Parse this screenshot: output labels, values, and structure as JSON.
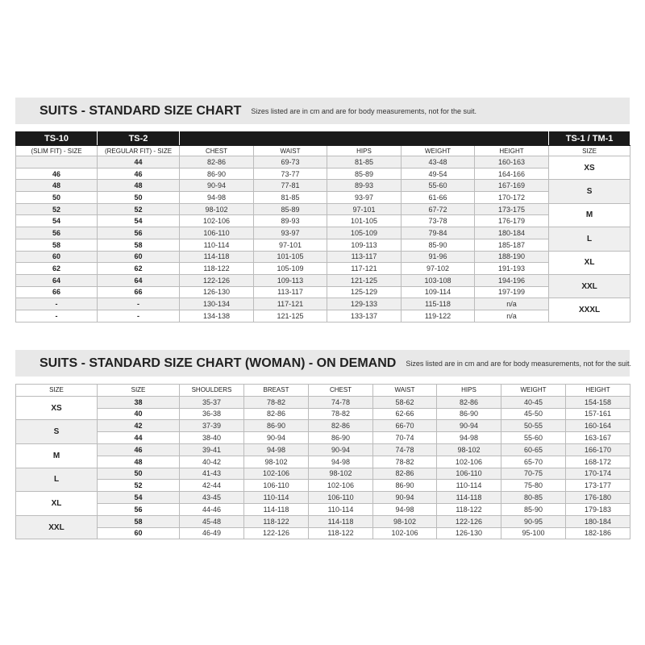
{
  "chart1": {
    "title": "SUITS - STANDARD SIZE CHART",
    "note": "Sizes listed are in cm and are for body measurements, not for the suit.",
    "group_headers": [
      "TS-10",
      "TS-2",
      "",
      "TS-1 / TM-1"
    ],
    "columns": [
      "(SLIM FIT) - SIZE",
      "(REGULAR FIT) - SIZE",
      "CHEST",
      "WAIST",
      "HIPS",
      "WEIGHT",
      "HEIGHT",
      "SIZE"
    ],
    "rows": [
      [
        "",
        "44",
        "82-86",
        "69-73",
        "81-85",
        "43-48",
        "160-163"
      ],
      [
        "46",
        "46",
        "86-90",
        "73-77",
        "85-89",
        "49-54",
        "164-166"
      ],
      [
        "48",
        "48",
        "90-94",
        "77-81",
        "89-93",
        "55-60",
        "167-169"
      ],
      [
        "50",
        "50",
        "94-98",
        "81-85",
        "93-97",
        "61-66",
        "170-172"
      ],
      [
        "52",
        "52",
        "98-102",
        "85-89",
        "97-101",
        "67-72",
        "173-175"
      ],
      [
        "54",
        "54",
        "102-106",
        "89-93",
        "101-105",
        "73-78",
        "176-179"
      ],
      [
        "56",
        "56",
        "106-110",
        "93-97",
        "105-109",
        "79-84",
        "180-184"
      ],
      [
        "58",
        "58",
        "110-114",
        "97-101",
        "109-113",
        "85-90",
        "185-187"
      ],
      [
        "60",
        "60",
        "114-118",
        "101-105",
        "113-117",
        "91-96",
        "188-190"
      ],
      [
        "62",
        "62",
        "118-122",
        "105-109",
        "117-121",
        "97-102",
        "191-193"
      ],
      [
        "64",
        "64",
        "122-126",
        "109-113",
        "121-125",
        "103-108",
        "194-196"
      ],
      [
        "66",
        "66",
        "126-130",
        "113-117",
        "125-129",
        "109-114",
        "197-199"
      ],
      [
        "-",
        "-",
        "130-134",
        "117-121",
        "129-133",
        "115-118",
        "n/a"
      ],
      [
        "-",
        "-",
        "134-138",
        "121-125",
        "133-137",
        "119-122",
        "n/a"
      ]
    ],
    "sizes": [
      "XS",
      "S",
      "M",
      "L",
      "XL",
      "XXL",
      "XXXL"
    ]
  },
  "chart2": {
    "title": "SUITS - STANDARD SIZE CHART (WOMAN) - ON DEMAND",
    "note": "Sizes listed are in cm and are for body measurements, not for the suit.",
    "columns": [
      "SIZE",
      "SIZE",
      "SHOULDERS",
      "BREAST",
      "CHEST",
      "WAIST",
      "HIPS",
      "WEIGHT",
      "HEIGHT"
    ],
    "sizes": [
      "XS",
      "S",
      "M",
      "L",
      "XL",
      "XXL"
    ],
    "rows": [
      [
        "38",
        "35-37",
        "78-82",
        "74-78",
        "58-62",
        "82-86",
        "40-45",
        "154-158"
      ],
      [
        "40",
        "36-38",
        "82-86",
        "78-82",
        "62-66",
        "86-90",
        "45-50",
        "157-161"
      ],
      [
        "42",
        "37-39",
        "86-90",
        "82-86",
        "66-70",
        "90-94",
        "50-55",
        "160-164"
      ],
      [
        "44",
        "38-40",
        "90-94",
        "86-90",
        "70-74",
        "94-98",
        "55-60",
        "163-167"
      ],
      [
        "46",
        "39-41",
        "94-98",
        "90-94",
        "74-78",
        "98-102",
        "60-65",
        "166-170"
      ],
      [
        "48",
        "40-42",
        "98-102",
        "94-98",
        "78-82",
        "102-106",
        "65-70",
        "168-172"
      ],
      [
        "50",
        "41-43",
        "102-106",
        "98-102",
        "82-86",
        "106-110",
        "70-75",
        "170-174"
      ],
      [
        "52",
        "42-44",
        "106-110",
        "102-106",
        "86-90",
        "110-114",
        "75-80",
        "173-177"
      ],
      [
        "54",
        "43-45",
        "110-114",
        "106-110",
        "90-94",
        "114-118",
        "80-85",
        "176-180"
      ],
      [
        "56",
        "44-46",
        "114-118",
        "110-114",
        "94-98",
        "118-122",
        "85-90",
        "179-183"
      ],
      [
        "58",
        "45-48",
        "118-122",
        "114-118",
        "98-102",
        "122-126",
        "90-95",
        "180-184"
      ],
      [
        "60",
        "46-49",
        "122-126",
        "118-122",
        "102-106",
        "126-130",
        "95-100",
        "182-186"
      ]
    ]
  }
}
